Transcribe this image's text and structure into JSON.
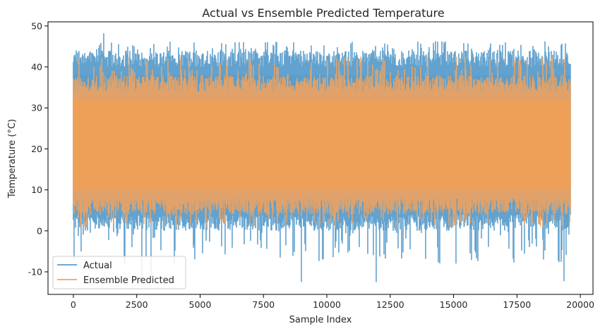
{
  "chart_data": {
    "type": "line",
    "title": "Actual vs Ensemble Predicted Temperature",
    "xlabel": "Sample Index",
    "ylabel": "Temperature (°C)",
    "xlim": [
      -1000,
      20500
    ],
    "ylim": [
      -15.5,
      51
    ],
    "xticks": [
      0,
      2500,
      5000,
      7500,
      10000,
      12500,
      15000,
      17500,
      20000
    ],
    "yticks": [
      -10,
      0,
      10,
      20,
      30,
      40,
      50
    ],
    "n_samples": 19600,
    "grid": false,
    "legend_position": "lower-left",
    "series": [
      {
        "name": "Actual",
        "color": "#5b9dcb",
        "typical_range": [
          2,
          42
        ],
        "min": -12.5,
        "max": 48.2,
        "peaks": [
          {
            "x": 1200,
            "y": 48.2
          },
          {
            "x": 2350,
            "y": 45.3
          },
          {
            "x": 5850,
            "y": 45.8
          },
          {
            "x": 8700,
            "y": 46.0
          },
          {
            "x": 14550,
            "y": 46.2
          },
          {
            "x": 16450,
            "y": 45.7
          },
          {
            "x": 18750,
            "y": 45.0
          },
          {
            "x": 2700,
            "y": -12.0
          },
          {
            "x": 3050,
            "y": -11.8
          },
          {
            "x": 9000,
            "y": -12.5
          },
          {
            "x": 11950,
            "y": -12.5
          },
          {
            "x": 19350,
            "y": -12.3
          }
        ]
      },
      {
        "name": "Ensemble Predicted",
        "color": "#f2a35c",
        "typical_range": [
          6,
          36
        ],
        "min": -1.5,
        "max": 45.3
      }
    ]
  }
}
